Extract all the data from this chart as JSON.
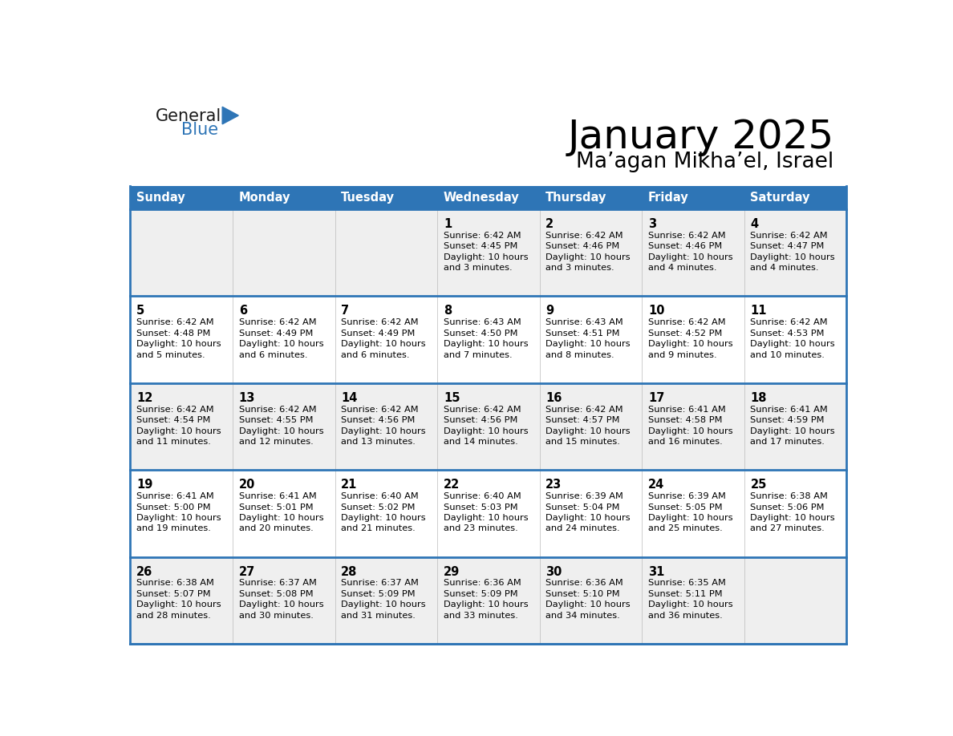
{
  "title": "January 2025",
  "subtitle": "Ma’agan Mikha’el, Israel",
  "days_of_week": [
    "Sunday",
    "Monday",
    "Tuesday",
    "Wednesday",
    "Thursday",
    "Friday",
    "Saturday"
  ],
  "header_bg": "#2E75B6",
  "header_text": "#FFFFFF",
  "row_bg_odd": "#EFEFEF",
  "row_bg_even": "#FFFFFF",
  "divider_color": "#2E75B6",
  "cell_border_color": "#CCCCCC",
  "text_color": "#000000",
  "logo_general_color": "#1A1A1A",
  "logo_blue_color": "#2E75B6",
  "logo_triangle_color": "#2E75B6",
  "calendar_data": [
    [
      null,
      null,
      null,
      {
        "day": 1,
        "sunrise": "6:42 AM",
        "sunset": "4:45 PM",
        "daylight": "10 hours and 3 minutes."
      },
      {
        "day": 2,
        "sunrise": "6:42 AM",
        "sunset": "4:46 PM",
        "daylight": "10 hours and 3 minutes."
      },
      {
        "day": 3,
        "sunrise": "6:42 AM",
        "sunset": "4:46 PM",
        "daylight": "10 hours and 4 minutes."
      },
      {
        "day": 4,
        "sunrise": "6:42 AM",
        "sunset": "4:47 PM",
        "daylight": "10 hours and 4 minutes."
      }
    ],
    [
      {
        "day": 5,
        "sunrise": "6:42 AM",
        "sunset": "4:48 PM",
        "daylight": "10 hours and 5 minutes."
      },
      {
        "day": 6,
        "sunrise": "6:42 AM",
        "sunset": "4:49 PM",
        "daylight": "10 hours and 6 minutes."
      },
      {
        "day": 7,
        "sunrise": "6:42 AM",
        "sunset": "4:49 PM",
        "daylight": "10 hours and 6 minutes."
      },
      {
        "day": 8,
        "sunrise": "6:43 AM",
        "sunset": "4:50 PM",
        "daylight": "10 hours and 7 minutes."
      },
      {
        "day": 9,
        "sunrise": "6:43 AM",
        "sunset": "4:51 PM",
        "daylight": "10 hours and 8 minutes."
      },
      {
        "day": 10,
        "sunrise": "6:42 AM",
        "sunset": "4:52 PM",
        "daylight": "10 hours and 9 minutes."
      },
      {
        "day": 11,
        "sunrise": "6:42 AM",
        "sunset": "4:53 PM",
        "daylight": "10 hours and 10 minutes."
      }
    ],
    [
      {
        "day": 12,
        "sunrise": "6:42 AM",
        "sunset": "4:54 PM",
        "daylight": "10 hours and 11 minutes."
      },
      {
        "day": 13,
        "sunrise": "6:42 AM",
        "sunset": "4:55 PM",
        "daylight": "10 hours and 12 minutes."
      },
      {
        "day": 14,
        "sunrise": "6:42 AM",
        "sunset": "4:56 PM",
        "daylight": "10 hours and 13 minutes."
      },
      {
        "day": 15,
        "sunrise": "6:42 AM",
        "sunset": "4:56 PM",
        "daylight": "10 hours and 14 minutes."
      },
      {
        "day": 16,
        "sunrise": "6:42 AM",
        "sunset": "4:57 PM",
        "daylight": "10 hours and 15 minutes."
      },
      {
        "day": 17,
        "sunrise": "6:41 AM",
        "sunset": "4:58 PM",
        "daylight": "10 hours and 16 minutes."
      },
      {
        "day": 18,
        "sunrise": "6:41 AM",
        "sunset": "4:59 PM",
        "daylight": "10 hours and 17 minutes."
      }
    ],
    [
      {
        "day": 19,
        "sunrise": "6:41 AM",
        "sunset": "5:00 PM",
        "daylight": "10 hours and 19 minutes."
      },
      {
        "day": 20,
        "sunrise": "6:41 AM",
        "sunset": "5:01 PM",
        "daylight": "10 hours and 20 minutes."
      },
      {
        "day": 21,
        "sunrise": "6:40 AM",
        "sunset": "5:02 PM",
        "daylight": "10 hours and 21 minutes."
      },
      {
        "day": 22,
        "sunrise": "6:40 AM",
        "sunset": "5:03 PM",
        "daylight": "10 hours and 23 minutes."
      },
      {
        "day": 23,
        "sunrise": "6:39 AM",
        "sunset": "5:04 PM",
        "daylight": "10 hours and 24 minutes."
      },
      {
        "day": 24,
        "sunrise": "6:39 AM",
        "sunset": "5:05 PM",
        "daylight": "10 hours and 25 minutes."
      },
      {
        "day": 25,
        "sunrise": "6:38 AM",
        "sunset": "5:06 PM",
        "daylight": "10 hours and 27 minutes."
      }
    ],
    [
      {
        "day": 26,
        "sunrise": "6:38 AM",
        "sunset": "5:07 PM",
        "daylight": "10 hours and 28 minutes."
      },
      {
        "day": 27,
        "sunrise": "6:37 AM",
        "sunset": "5:08 PM",
        "daylight": "10 hours and 30 minutes."
      },
      {
        "day": 28,
        "sunrise": "6:37 AM",
        "sunset": "5:09 PM",
        "daylight": "10 hours and 31 minutes."
      },
      {
        "day": 29,
        "sunrise": "6:36 AM",
        "sunset": "5:09 PM",
        "daylight": "10 hours and 33 minutes."
      },
      {
        "day": 30,
        "sunrise": "6:36 AM",
        "sunset": "5:10 PM",
        "daylight": "10 hours and 34 minutes."
      },
      {
        "day": 31,
        "sunrise": "6:35 AM",
        "sunset": "5:11 PM",
        "daylight": "10 hours and 36 minutes."
      },
      null
    ]
  ]
}
